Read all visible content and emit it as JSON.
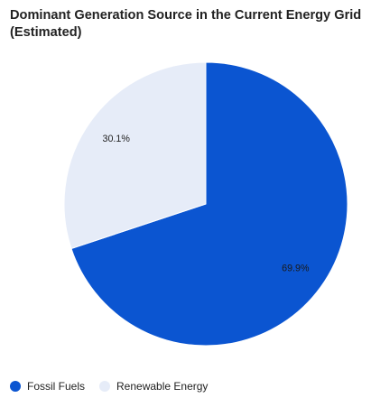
{
  "chart_data": {
    "type": "pie",
    "title": "Dominant Generation Source in the Current Energy Grid (Estimated)",
    "slices": [
      {
        "label": "Fossil Fuels",
        "value": 69.9,
        "display": "69.9%",
        "color": "#0b55d1",
        "label_color": "#1a1a1a"
      },
      {
        "label": "Renewable Energy",
        "value": 30.1,
        "display": "30.1%",
        "color": "#e6ecf8",
        "label_color": "#222222"
      }
    ],
    "start_angle_deg": 0,
    "direction": "clockwise",
    "legend_position": "bottom-left"
  }
}
